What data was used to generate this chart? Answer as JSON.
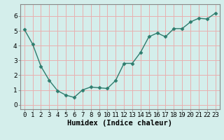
{
  "x": [
    0,
    1,
    2,
    3,
    4,
    5,
    6,
    7,
    8,
    9,
    10,
    11,
    12,
    13,
    14,
    15,
    16,
    17,
    18,
    19,
    20,
    21,
    22,
    23
  ],
  "y": [
    5.1,
    4.1,
    2.6,
    1.65,
    0.95,
    0.65,
    0.5,
    1.0,
    1.2,
    1.15,
    1.1,
    1.65,
    2.8,
    2.8,
    3.55,
    4.6,
    4.85,
    4.6,
    5.15,
    5.15,
    5.6,
    5.85,
    5.8,
    6.2
  ],
  "line_color": "#2e7d6e",
  "marker": "D",
  "marker_size": 2.5,
  "line_width": 1.0,
  "bg_color": "#d4eeeb",
  "grid_color": "#e8b0b0",
  "xlabel": "Humidex (Indice chaleur)",
  "xlim": [
    -0.5,
    23.5
  ],
  "ylim": [
    -0.3,
    6.8
  ],
  "yticks": [
    0,
    1,
    2,
    3,
    4,
    5,
    6
  ],
  "xtick_labels": [
    "0",
    "1",
    "2",
    "3",
    "4",
    "5",
    "6",
    "7",
    "8",
    "9",
    "10",
    "11",
    "12",
    "13",
    "14",
    "15",
    "16",
    "17",
    "18",
    "19",
    "20",
    "21",
    "22",
    "23"
  ],
  "xlabel_fontsize": 7.5,
  "tick_fontsize": 6.5,
  "spine_color": "#888888"
}
